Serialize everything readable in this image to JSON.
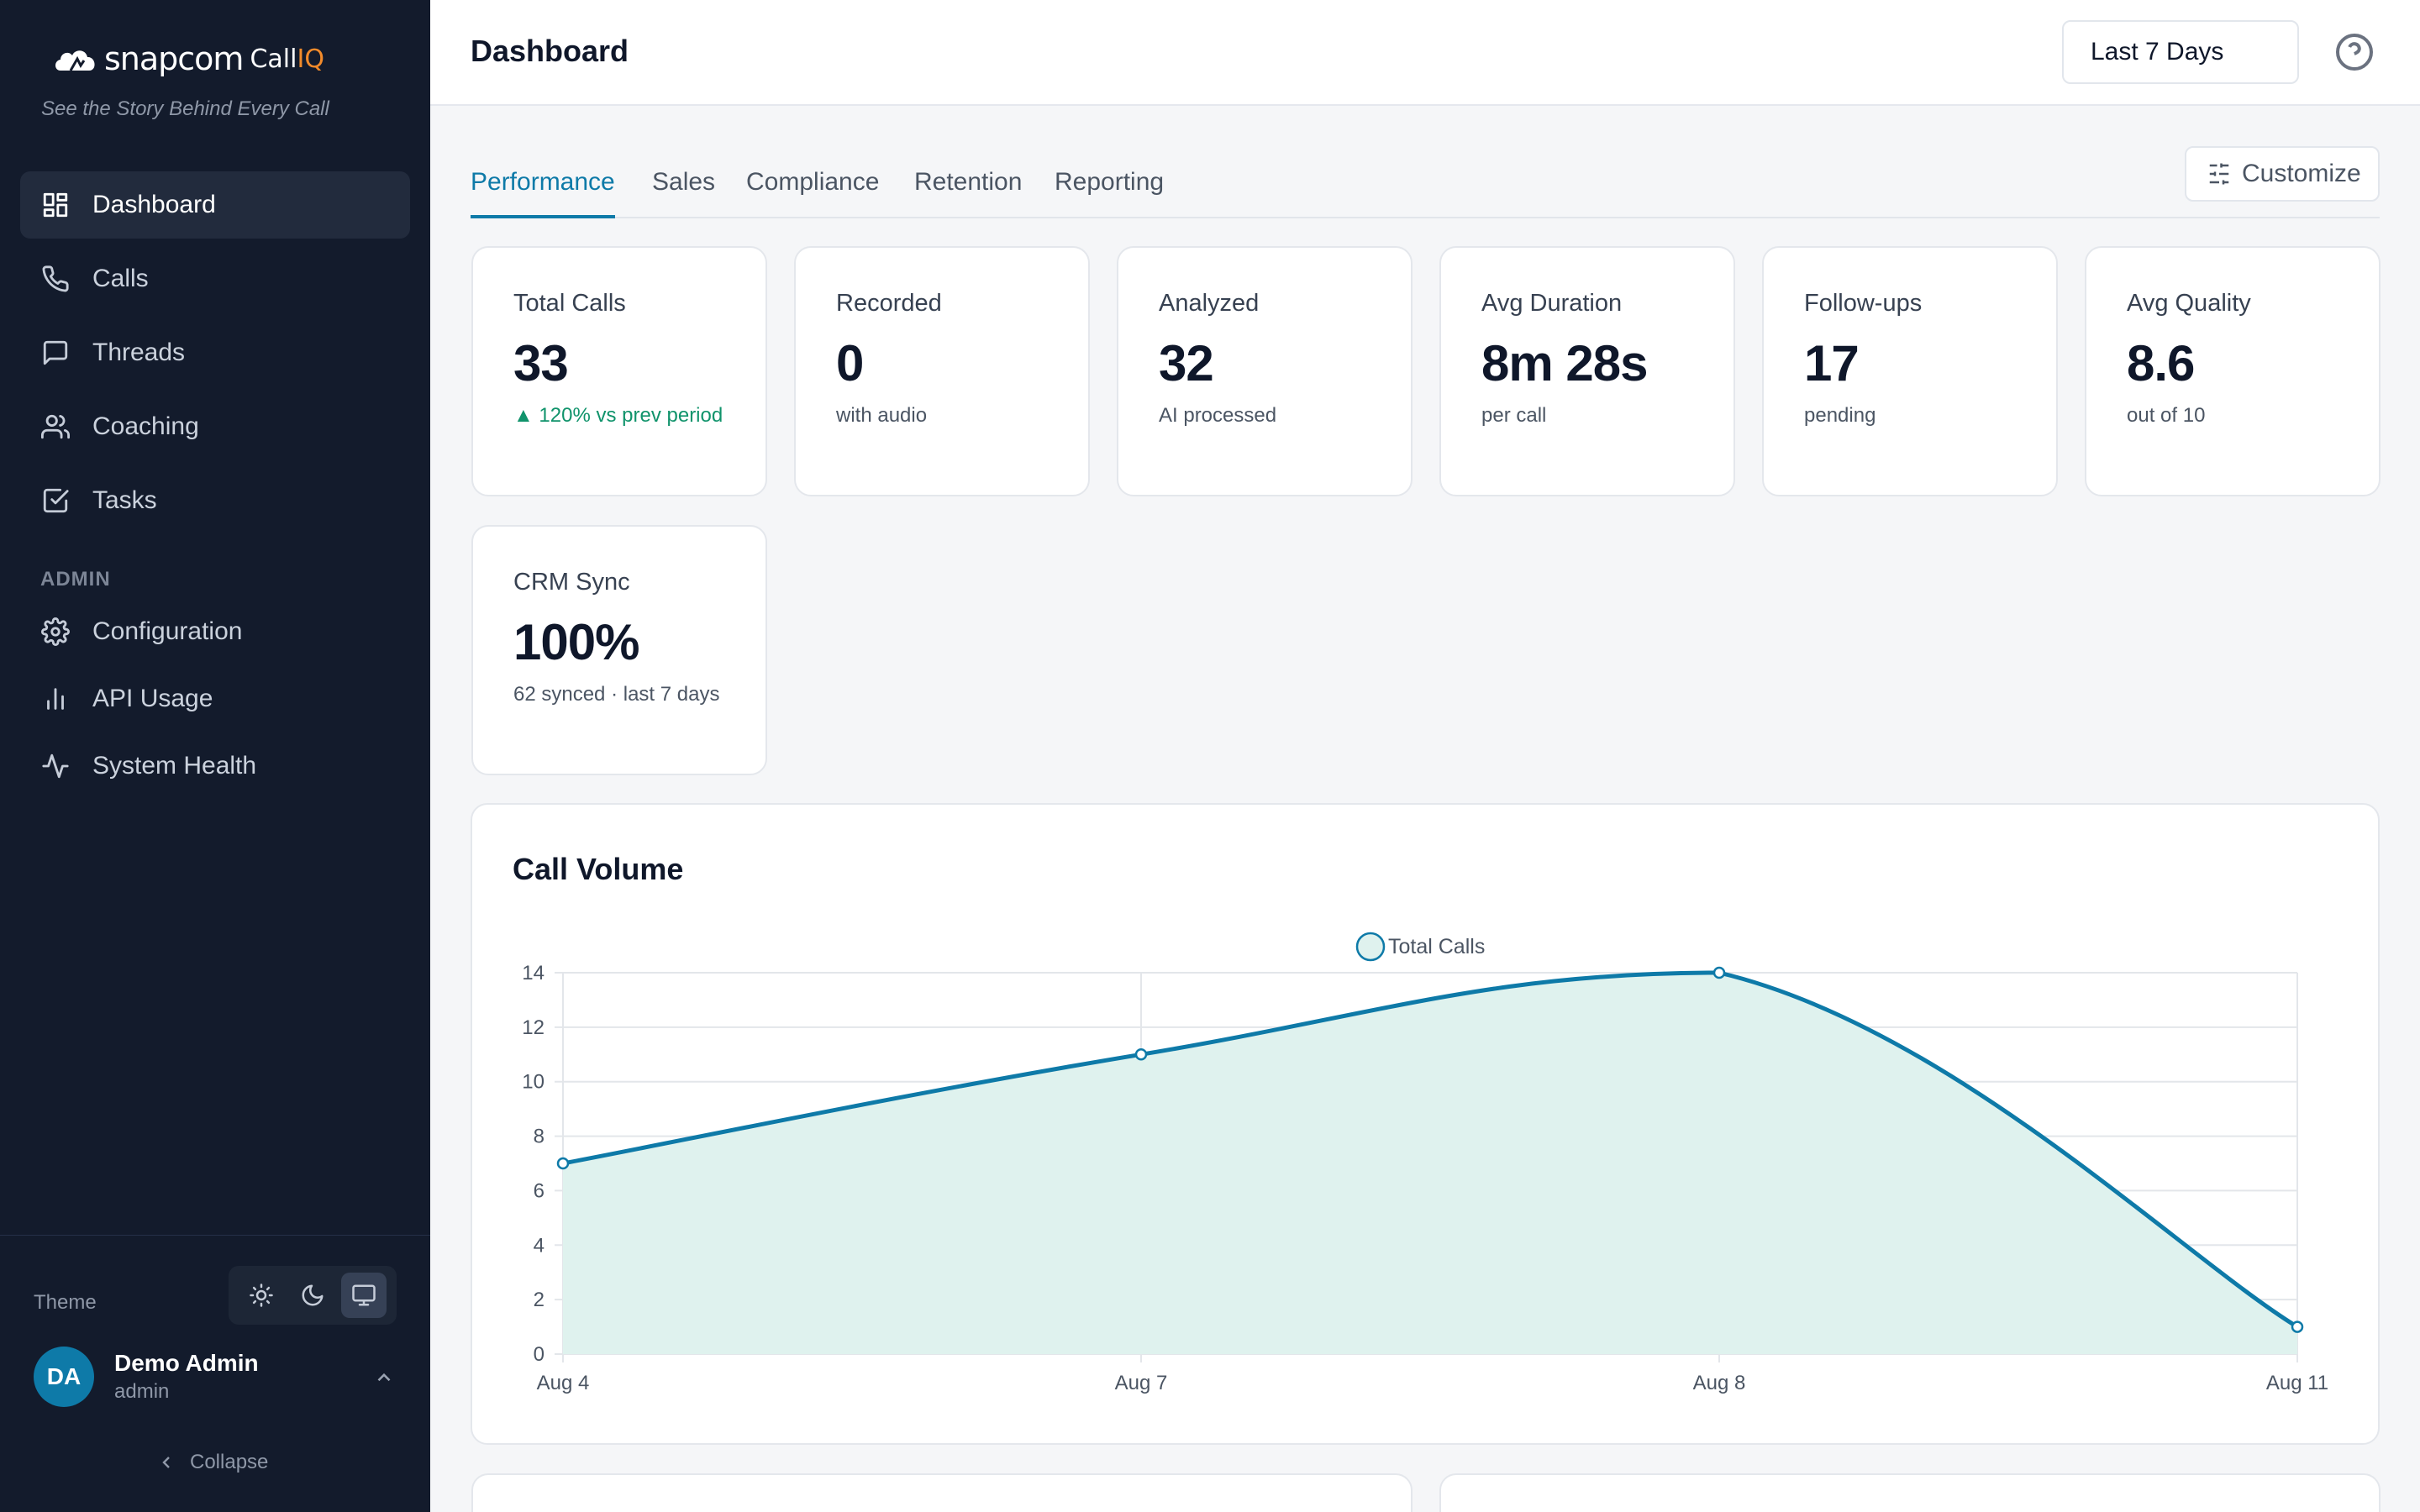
{
  "brand": {
    "logo_text": "snapcom",
    "product": "Call",
    "product_suffix": "IQ",
    "tagline": "See the Story Behind Every Call"
  },
  "sidebar": {
    "items": [
      {
        "label": "Dashboard",
        "icon": "dashboard-icon",
        "active": true
      },
      {
        "label": "Calls",
        "icon": "phone-icon"
      },
      {
        "label": "Threads",
        "icon": "message-icon"
      },
      {
        "label": "Coaching",
        "icon": "users-icon"
      },
      {
        "label": "Tasks",
        "icon": "checkbox-icon"
      }
    ],
    "admin_label": "ADMIN",
    "admin_items": [
      {
        "label": "Configuration",
        "icon": "gear-icon"
      },
      {
        "label": "API Usage",
        "icon": "bar-chart-icon"
      },
      {
        "label": "System Health",
        "icon": "activity-icon"
      }
    ],
    "theme_label": "Theme",
    "theme_options": [
      "light",
      "dark",
      "system"
    ],
    "theme_selected": "system",
    "user": {
      "initials": "DA",
      "name": "Demo Admin",
      "role": "admin"
    },
    "collapse_label": "Collapse"
  },
  "header": {
    "title": "Dashboard",
    "date_range": "Last 7 Days"
  },
  "tabs": [
    "Performance",
    "Sales",
    "Compliance",
    "Retention",
    "Reporting"
  ],
  "active_tab": "Performance",
  "customize_label": "Customize",
  "kpis": [
    {
      "label": "Total Calls",
      "value": "33",
      "sub": "▲ 120% vs prev period",
      "trend": "up"
    },
    {
      "label": "Recorded",
      "value": "0",
      "sub": "with audio"
    },
    {
      "label": "Analyzed",
      "value": "32",
      "sub": "AI processed"
    },
    {
      "label": "Avg Duration",
      "value": "8m 28s",
      "sub": "per call"
    },
    {
      "label": "Follow-ups",
      "value": "17",
      "sub": "pending"
    },
    {
      "label": "Avg Quality",
      "value": "8.6",
      "sub": "out of 10"
    },
    {
      "label": "CRM Sync",
      "value": "100%",
      "sub": "62 synced · last 7 days"
    }
  ],
  "colors": {
    "accent": "#0e7aa8",
    "sidebar_bg": "#131b2c",
    "area_fill": "#dff2ee",
    "trend_up": "#10936b"
  },
  "chart_data": {
    "type": "area",
    "title": "Call Volume",
    "x": [
      "Aug 4",
      "Aug 7",
      "Aug 8",
      "Aug 11"
    ],
    "series": [
      {
        "name": "Total Calls",
        "values": [
          7,
          11,
          14,
          1
        ]
      }
    ],
    "ylim": [
      0,
      14
    ],
    "yticks": [
      0,
      2,
      4,
      6,
      8,
      10,
      12,
      14
    ],
    "grid": true,
    "legend": "top-center"
  }
}
